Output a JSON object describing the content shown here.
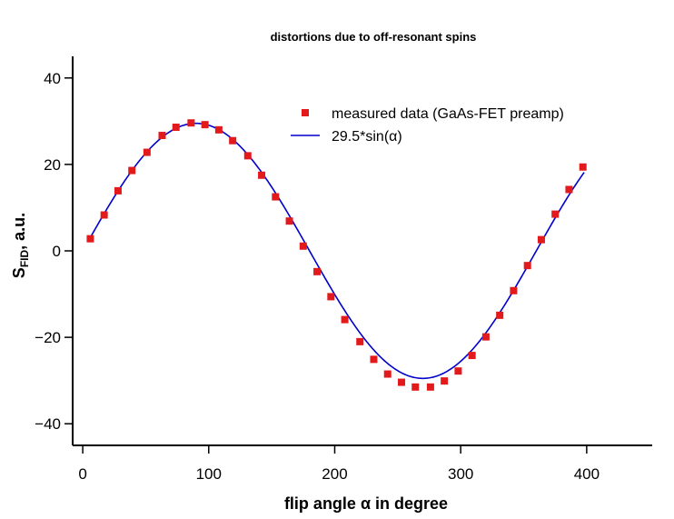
{
  "chart_data": {
    "type": "scatter",
    "title": "distortions due to off-resonant spins",
    "xlabel": "flip angle α in degree",
    "ylabel_main": "S",
    "ylabel_sub": "FID",
    "ylabel_suffix": ", a.u.",
    "xlim": [
      -8,
      452
    ],
    "ylim": [
      -45,
      45
    ],
    "xticks": [
      0,
      100,
      200,
      300,
      400
    ],
    "xtick_labels": [
      "0",
      "100",
      "200",
      "300",
      "400"
    ],
    "yticks": [
      40,
      20,
      0,
      -20,
      -40
    ],
    "ytick_labels": [
      "40",
      "20",
      "0",
      "−20",
      "−40"
    ],
    "grid": false,
    "legend_position": "top-right",
    "series": [
      {
        "name": "measured data (GaAs-FET preamp)",
        "kind": "markers",
        "color": "#e31a1c",
        "x": [
          6,
          17,
          28,
          39,
          51,
          63,
          74,
          86,
          97,
          108,
          119,
          131,
          142,
          153,
          164,
          175,
          186,
          197,
          208,
          220,
          231,
          242,
          253,
          264,
          276,
          287,
          298,
          309,
          320,
          331,
          342,
          353,
          364,
          375,
          386,
          397
        ],
        "y": [
          2.8,
          8.3,
          13.9,
          18.6,
          22.8,
          26.7,
          28.6,
          29.6,
          29.2,
          28.0,
          25.5,
          22.0,
          17.5,
          12.5,
          6.9,
          1.1,
          -4.8,
          -10.6,
          -15.9,
          -21.0,
          -25.1,
          -28.5,
          -30.4,
          -31.5,
          -31.5,
          -30.1,
          -27.8,
          -24.2,
          -19.9,
          -14.9,
          -9.2,
          -3.4,
          2.6,
          8.5,
          14.2,
          19.4
        ]
      },
      {
        "name": "29.5*sin(α)",
        "kind": "line",
        "color": "#0000cc",
        "amplitude": 29.5,
        "x_range": [
          6,
          398
        ]
      }
    ]
  }
}
